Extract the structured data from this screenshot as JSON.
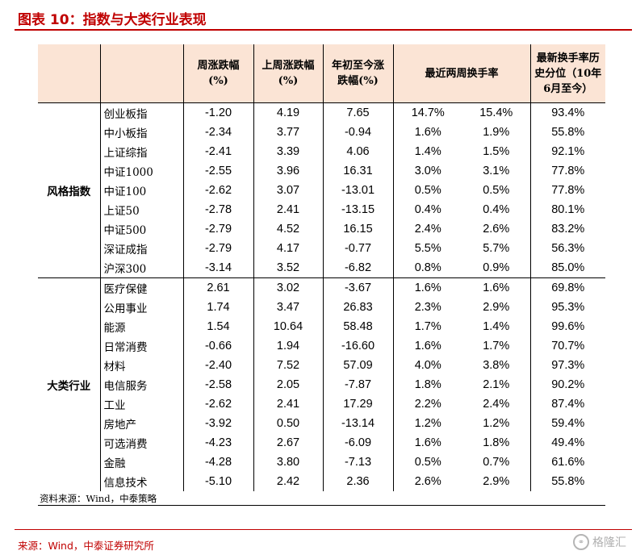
{
  "title": "图表 10：指数与大类行业表现",
  "headers": [
    "",
    "",
    "周涨跌幅\n(%)",
    "上周涨跌幅\n(%)",
    "年初至今涨\n跌幅(%)",
    "最近两周换手率",
    "最新换手率历\n史分位（10年\n6月至今）"
  ],
  "groups": [
    {
      "label": "风格指数",
      "rows": [
        {
          "name": "创业板指",
          "c1": "-1.20",
          "c2": "4.19",
          "c3": "7.65",
          "c4": "14.7%",
          "c5": "15.4%",
          "c6": "93.4%"
        },
        {
          "name": "中小板指",
          "c1": "-2.34",
          "c2": "3.77",
          "c3": "-0.94",
          "c4": "1.6%",
          "c5": "1.9%",
          "c6": "55.8%"
        },
        {
          "name": "上证综指",
          "c1": "-2.41",
          "c2": "3.39",
          "c3": "4.06",
          "c4": "1.4%",
          "c5": "1.5%",
          "c6": "92.1%"
        },
        {
          "name": "中证1000",
          "c1": "-2.55",
          "c2": "3.96",
          "c3": "16.31",
          "c4": "3.0%",
          "c5": "3.1%",
          "c6": "77.8%"
        },
        {
          "name": "中证100",
          "c1": "-2.62",
          "c2": "3.07",
          "c3": "-13.01",
          "c4": "0.5%",
          "c5": "0.5%",
          "c6": "77.8%"
        },
        {
          "name": "上证50",
          "c1": "-2.78",
          "c2": "2.41",
          "c3": "-13.15",
          "c4": "0.4%",
          "c5": "0.4%",
          "c6": "80.1%"
        },
        {
          "name": "中证500",
          "c1": "-2.79",
          "c2": "4.52",
          "c3": "16.15",
          "c4": "2.4%",
          "c5": "2.6%",
          "c6": "83.2%"
        },
        {
          "name": "深证成指",
          "c1": "-2.79",
          "c2": "4.17",
          "c3": "-0.77",
          "c4": "5.5%",
          "c5": "5.7%",
          "c6": "56.3%"
        },
        {
          "name": "沪深300",
          "c1": "-3.14",
          "c2": "3.52",
          "c3": "-6.82",
          "c4": "0.8%",
          "c5": "0.9%",
          "c6": "85.0%"
        }
      ]
    },
    {
      "label": "大类行业",
      "rows": [
        {
          "name": "医疗保健",
          "c1": "2.61",
          "c2": "3.02",
          "c3": "-3.67",
          "c4": "1.6%",
          "c5": "1.6%",
          "c6": "69.8%"
        },
        {
          "name": "公用事业",
          "c1": "1.74",
          "c2": "3.47",
          "c3": "26.83",
          "c4": "2.3%",
          "c5": "2.9%",
          "c6": "95.3%"
        },
        {
          "name": "能源",
          "c1": "1.54",
          "c2": "10.64",
          "c3": "58.48",
          "c4": "1.7%",
          "c5": "1.4%",
          "c6": "99.6%"
        },
        {
          "name": "日常消费",
          "c1": "-0.66",
          "c2": "1.94",
          "c3": "-16.60",
          "c4": "1.6%",
          "c5": "1.7%",
          "c6": "70.7%"
        },
        {
          "name": "材料",
          "c1": "-2.40",
          "c2": "7.52",
          "c3": "57.09",
          "c4": "4.0%",
          "c5": "3.8%",
          "c6": "97.3%"
        },
        {
          "name": "电信服务",
          "c1": "-2.58",
          "c2": "2.05",
          "c3": "-7.87",
          "c4": "1.8%",
          "c5": "2.1%",
          "c6": "90.2%"
        },
        {
          "name": "工业",
          "c1": "-2.62",
          "c2": "2.41",
          "c3": "17.29",
          "c4": "2.2%",
          "c5": "2.4%",
          "c6": "87.4%"
        },
        {
          "name": "房地产",
          "c1": "-3.92",
          "c2": "0.50",
          "c3": "-13.14",
          "c4": "1.2%",
          "c5": "1.2%",
          "c6": "59.4%"
        },
        {
          "name": "可选消费",
          "c1": "-4.23",
          "c2": "2.67",
          "c3": "-6.09",
          "c4": "1.6%",
          "c5": "1.8%",
          "c6": "49.4%"
        },
        {
          "name": "金融",
          "c1": "-4.28",
          "c2": "3.80",
          "c3": "-7.13",
          "c4": "0.5%",
          "c5": "0.7%",
          "c6": "61.6%"
        },
        {
          "name": "信息技术",
          "c1": "-5.10",
          "c2": "2.42",
          "c3": "2.36",
          "c4": "2.6%",
          "c5": "2.9%",
          "c6": "55.8%"
        }
      ]
    }
  ],
  "table_source": "资料来源：Wind，中泰策略",
  "footer": "来源：Wind，中泰证券研究所",
  "watermark": {
    "text": "格隆汇",
    "icon": "gelonghui-logo-icon"
  },
  "colors": {
    "accent": "#c00000",
    "header_bg": "#fbe4d5"
  }
}
